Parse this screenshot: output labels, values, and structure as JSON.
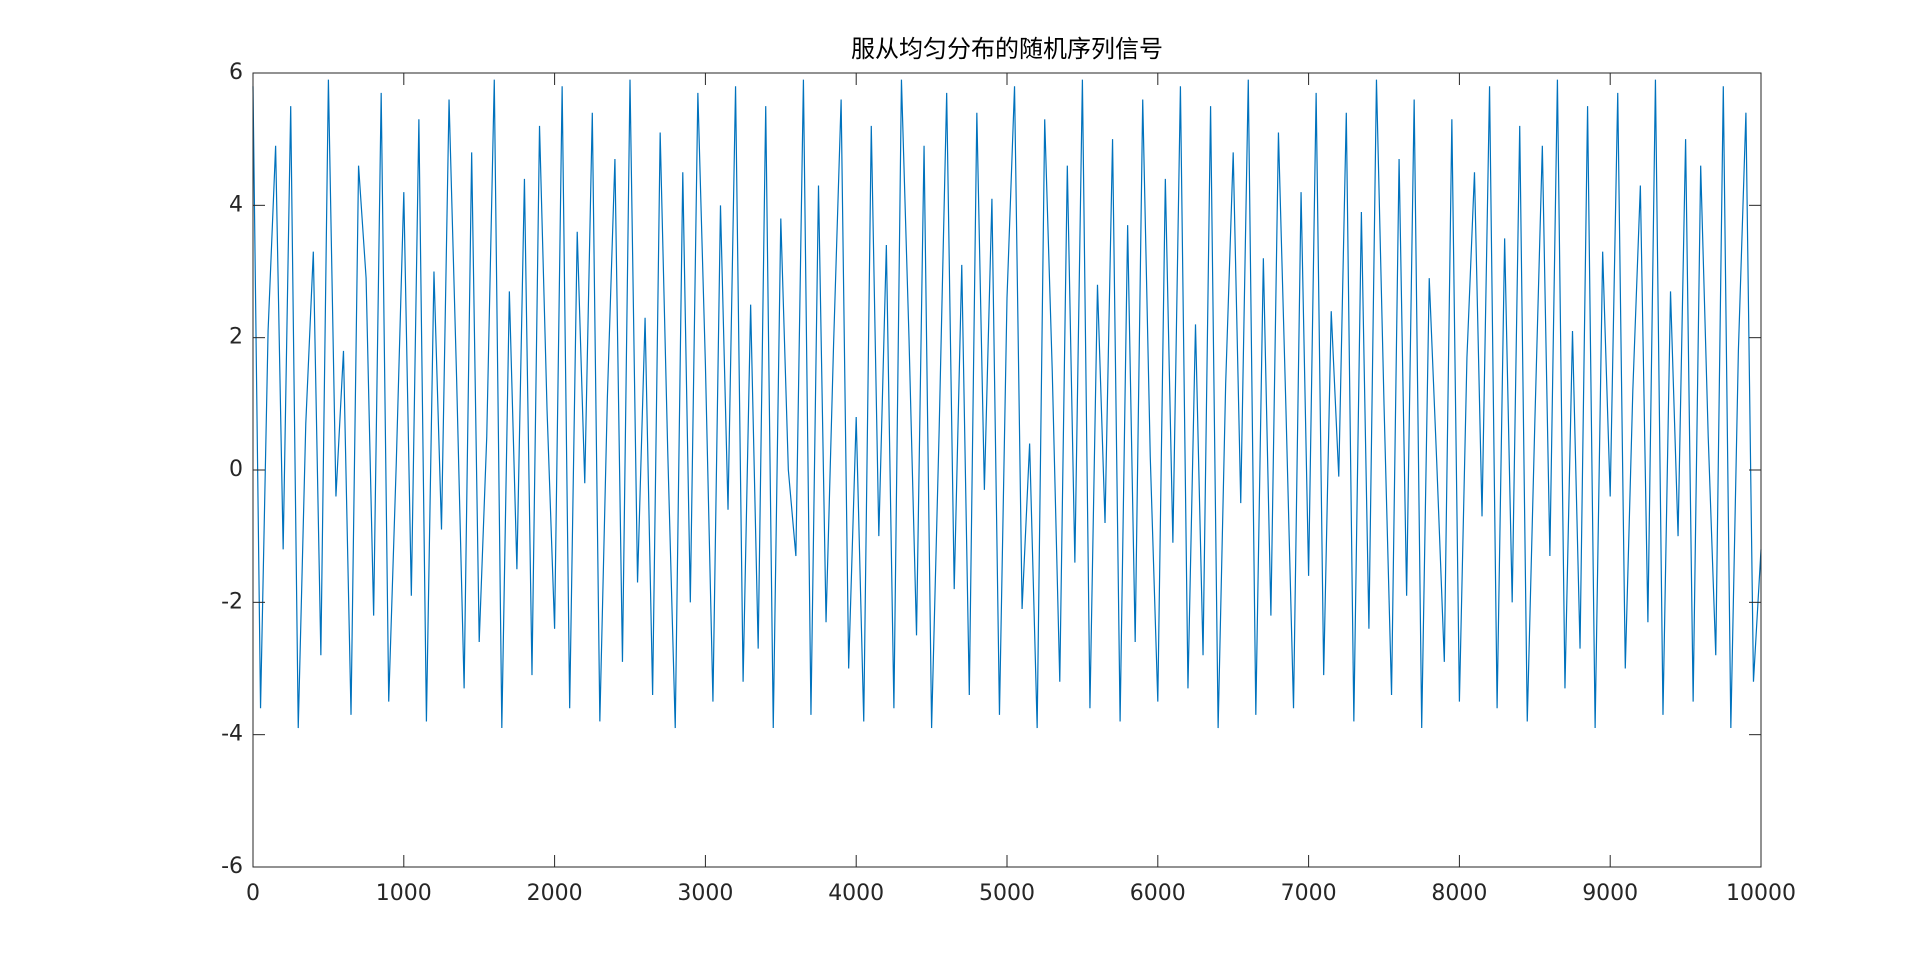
{
  "chart_data": {
    "type": "line",
    "title": "服从均匀分布的随机序列信号",
    "x": [
      0,
      50,
      100,
      150,
      200,
      250,
      300,
      350,
      400,
      450,
      500,
      550,
      600,
      650,
      700,
      750,
      800,
      850,
      900,
      950,
      1000,
      1050,
      1100,
      1150,
      1200,
      1250,
      1300,
      1350,
      1400,
      1450,
      1500,
      1550,
      1600,
      1650,
      1700,
      1750,
      1800,
      1850,
      1900,
      1950,
      2000,
      2050,
      2100,
      2150,
      2200,
      2250,
      2300,
      2350,
      2400,
      2450,
      2500,
      2550,
      2600,
      2650,
      2700,
      2750,
      2800,
      2850,
      2900,
      2950,
      3000,
      3050,
      3100,
      3150,
      3200,
      3250,
      3300,
      3350,
      3400,
      3450,
      3500,
      3550,
      3600,
      3650,
      3700,
      3750,
      3800,
      3850,
      3900,
      3950,
      4000,
      4050,
      4100,
      4150,
      4200,
      4250,
      4300,
      4350,
      4400,
      4450,
      4500,
      4550,
      4600,
      4650,
      4700,
      4750,
      4800,
      4850,
      4900,
      4950,
      5000,
      5050,
      5100,
      5150,
      5200,
      5250,
      5300,
      5350,
      5400,
      5450,
      5500,
      5550,
      5600,
      5650,
      5700,
      5750,
      5800,
      5850,
      5900,
      5950,
      6000,
      6050,
      6100,
      6150,
      6200,
      6250,
      6300,
      6350,
      6400,
      6450,
      6500,
      6550,
      6600,
      6650,
      6700,
      6750,
      6800,
      6850,
      6900,
      6950,
      7000,
      7050,
      7100,
      7150,
      7200,
      7250,
      7300,
      7350,
      7400,
      7450,
      7500,
      7550,
      7600,
      7650,
      7700,
      7750,
      7800,
      7850,
      7900,
      7950,
      8000,
      8050,
      8100,
      8150,
      8200,
      8250,
      8300,
      8350,
      8400,
      8450,
      8500,
      8550,
      8600,
      8650,
      8700,
      8750,
      8800,
      8850,
      8900,
      8950,
      9000,
      9050,
      9100,
      9150,
      9200,
      9250,
      9300,
      9350,
      9400,
      9450,
      9500,
      9550,
      9600,
      9650,
      9700,
      9750,
      9800,
      9850,
      9900,
      9950,
      10000
    ],
    "series": [
      {
        "color": "#0072BD",
        "values": [
          5.8,
          -3.6,
          2.1,
          4.9,
          -1.2,
          5.5,
          -3.9,
          0.7,
          3.3,
          -2.8,
          5.9,
          -0.4,
          1.8,
          -3.7,
          4.6,
          2.9,
          -2.2,
          5.7,
          -3.5,
          0.1,
          4.2,
          -1.9,
          5.3,
          -3.8,
          3.0,
          -0.9,
          5.6,
          1.4,
          -3.3,
          4.8,
          -2.6,
          0.5,
          5.9,
          -3.9,
          2.7,
          -1.5,
          4.4,
          -3.1,
          5.2,
          0.9,
          -2.4,
          5.8,
          -3.6,
          3.6,
          -0.2,
          5.4,
          -3.8,
          1.1,
          4.7,
          -2.9,
          5.9,
          -1.7,
          2.3,
          -3.4,
          5.1,
          0.3,
          -3.9,
          4.5,
          -2.0,
          5.7,
          1.6,
          -3.5,
          4.0,
          -0.6,
          5.8,
          -3.2,
          2.5,
          -2.7,
          5.5,
          -3.9,
          3.8,
          0.0,
          -1.3,
          5.9,
          -3.7,
          4.3,
          -2.3,
          1.9,
          5.6,
          -3.0,
          0.8,
          -3.8,
          5.2,
          -1.0,
          3.4,
          -3.6,
          5.9,
          2.0,
          -2.5,
          4.9,
          -3.9,
          0.6,
          5.7,
          -1.8,
          3.1,
          -3.4,
          5.4,
          -0.3,
          4.1,
          -3.7,
          2.6,
          5.8,
          -2.1,
          0.4,
          -3.9,
          5.3,
          1.5,
          -3.2,
          4.6,
          -1.4,
          5.9,
          -3.6,
          2.8,
          -0.8,
          5.0,
          -3.8,
          3.7,
          -2.6,
          5.6,
          0.2,
          -3.5,
          4.4,
          -1.1,
          5.8,
          -3.3,
          2.2,
          -2.8,
          5.5,
          -3.9,
          1.3,
          4.8,
          -0.5,
          5.9,
          -3.7,
          3.2,
          -2.2,
          5.1,
          0.9,
          -3.6,
          4.2,
          -1.6,
          5.7,
          -3.1,
          2.4,
          -0.1,
          5.4,
          -3.8,
          3.9,
          -2.4,
          5.9,
          1.0,
          -3.4,
          4.7,
          -1.9,
          5.6,
          -3.9,
          2.9,
          0.1,
          -2.9,
          5.3,
          -3.5,
          1.7,
          4.5,
          -0.7,
          5.8,
          -3.6,
          3.5,
          -2.0,
          5.2,
          -3.8,
          0.7,
          4.9,
          -1.3,
          5.9,
          -3.3,
          2.1,
          -2.7,
          5.5,
          -3.9,
          3.3,
          -0.4,
          5.7,
          -3.0,
          1.2,
          4.3,
          -2.3,
          5.9,
          -3.7,
          2.7,
          -1.0,
          5.0,
          -3.5,
          4.6,
          0.5,
          -2.8,
          5.8,
          -3.9,
          1.8,
          5.4,
          -3.2,
          -1.2
        ]
      }
    ],
    "xlim": [
      0,
      10000
    ],
    "xticks": [
      0,
      1000,
      2000,
      3000,
      4000,
      5000,
      6000,
      7000,
      8000,
      9000,
      10000
    ],
    "ylim": [
      -6,
      6
    ],
    "yticks": [
      -6,
      -4,
      -2,
      0,
      2,
      4,
      6
    ],
    "grid": false
  }
}
